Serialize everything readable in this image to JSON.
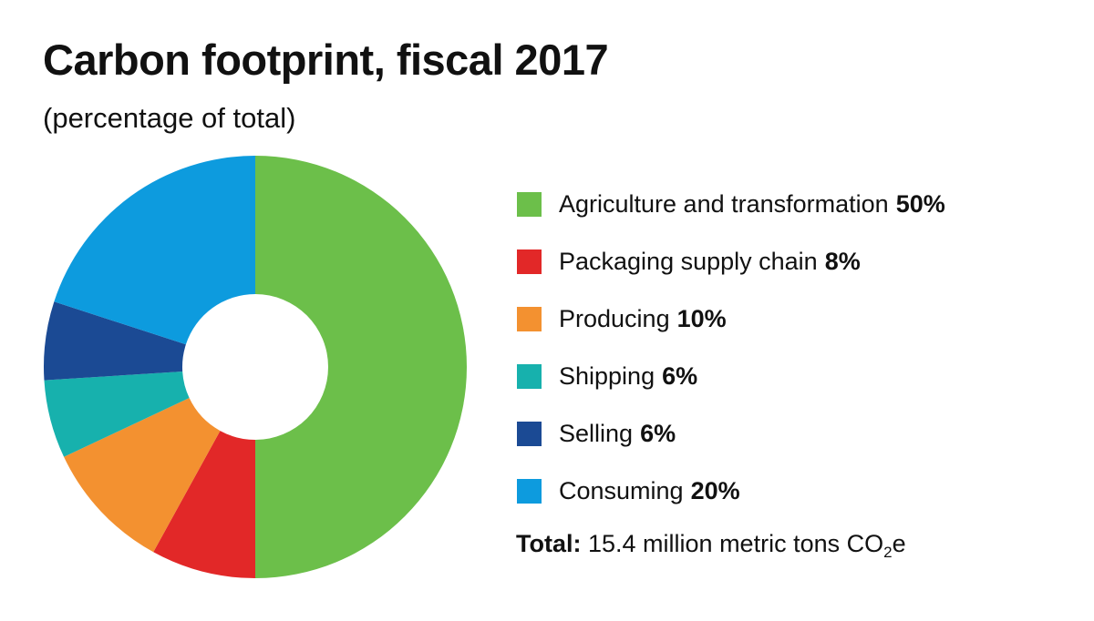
{
  "chart_data": {
    "type": "pie",
    "title": "Carbon footprint, fiscal 2017",
    "subtitle": "(percentage of total)",
    "donut": true,
    "legend_position": "right",
    "slices": [
      {
        "label": "Agriculture and transformation",
        "value": 50,
        "value_label": "50%",
        "color": "#6cbf4a"
      },
      {
        "label": "Packaging supply chain",
        "value": 8,
        "value_label": "8%",
        "color": "#e22828"
      },
      {
        "label": "Producing",
        "value": 10,
        "value_label": "10%",
        "color": "#f39130"
      },
      {
        "label": "Shipping",
        "value": 6,
        "value_label": "6%",
        "color": "#17b1ad"
      },
      {
        "label": "Selling",
        "value": 6,
        "value_label": "6%",
        "color": "#1b4a94"
      },
      {
        "label": "Consuming",
        "value": 20,
        "value_label": "20%",
        "color": "#0d9bde"
      }
    ],
    "total": {
      "label": "Total:",
      "text": "15.4 million metric tons CO",
      "subscript": "2",
      "suffix": "e"
    }
  }
}
